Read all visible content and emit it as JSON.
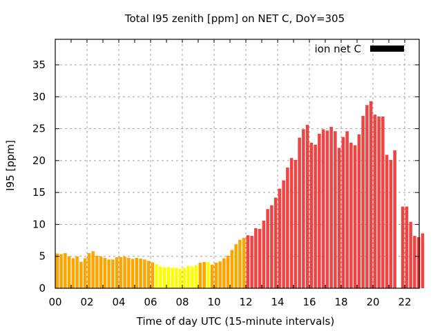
{
  "chart_data": {
    "type": "bar",
    "title": "Total I95 zenith [ppm] on NET C, DoY=305",
    "xlabel": "Time of day UTC (15-minute intervals)",
    "ylabel": "I95 [ppm]",
    "ylim": [
      0,
      39
    ],
    "xlim_hours": [
      0,
      22.75
    ],
    "grid": true,
    "legend": {
      "label": "ion net C",
      "placement": "top-right",
      "color": "#000000"
    },
    "x_tick_labels": [
      "00",
      "02",
      "04",
      "06",
      "08",
      "10",
      "12",
      "14",
      "16",
      "18",
      "20",
      "22"
    ],
    "y_tick_labels": [
      "0",
      "5",
      "10",
      "15",
      "20",
      "25",
      "30",
      "35"
    ],
    "y_ticks": [
      0,
      5,
      10,
      15,
      20,
      25,
      30,
      35
    ],
    "interval_minutes": 15,
    "colors": {
      "orange": "#ffa500",
      "yellow": "#ffff00",
      "red": "#ef4444",
      "grid": "#a0a0a0"
    },
    "values": [
      5.45,
      5.35,
      5.5,
      5.0,
      4.7,
      5.0,
      4.15,
      4.7,
      5.5,
      5.8,
      5.1,
      5.0,
      4.75,
      4.5,
      4.5,
      4.85,
      4.9,
      4.95,
      4.75,
      4.6,
      4.75,
      4.65,
      4.5,
      4.3,
      4.05,
      3.8,
      3.4,
      3.3,
      3.3,
      3.2,
      3.2,
      3.05,
      3.2,
      3.5,
      3.4,
      3.6,
      4.0,
      4.1,
      4.1,
      3.7,
      4.0,
      4.2,
      4.7,
      5.1,
      6.0,
      6.9,
      7.6,
      7.9,
      8.3,
      8.2,
      9.4,
      9.3,
      10.6,
      12.4,
      13.0,
      14.2,
      15.6,
      16.9,
      18.9,
      20.4,
      20.1,
      23.6,
      24.9,
      25.6,
      22.8,
      22.5,
      24.2,
      24.9,
      24.7,
      25.3,
      24.6,
      22.0,
      23.7,
      24.6,
      22.8,
      22.4,
      24.1,
      27.0,
      28.7,
      29.3,
      27.2,
      26.9,
      26.9,
      20.9,
      20.1,
      21.6,
      null,
      12.8,
      12.8,
      10.4,
      8.2,
      8.0,
      8.6
    ],
    "bar_colors": [
      "orange",
      "orange",
      "orange",
      "orange",
      "orange",
      "orange",
      "orange",
      "orange",
      "orange",
      "orange",
      "orange",
      "orange",
      "orange",
      "orange",
      "orange",
      "orange",
      "orange",
      "orange",
      "orange",
      "orange",
      "orange",
      "orange",
      "orange",
      "orange",
      "orange",
      "yellow",
      "yellow",
      "yellow",
      "yellow",
      "yellow",
      "yellow",
      "yellow",
      "yellow",
      "yellow",
      "yellow",
      "yellow",
      "orange",
      "orange",
      "yellow",
      "orange",
      "orange",
      "orange",
      "orange",
      "orange",
      "orange",
      "orange",
      "orange",
      "orange",
      "red",
      "red",
      "red",
      "red",
      "red",
      "red",
      "red",
      "red",
      "red",
      "red",
      "red",
      "red",
      "red",
      "red",
      "red",
      "red",
      "red",
      "red",
      "red",
      "red",
      "red",
      "red",
      "red",
      "red",
      "red",
      "red",
      "red",
      "red",
      "red",
      "red",
      "red",
      "red",
      "red",
      "red",
      "red",
      "red",
      "red",
      "red",
      "red",
      "red",
      "red",
      "red",
      "red",
      "red",
      "red"
    ]
  }
}
